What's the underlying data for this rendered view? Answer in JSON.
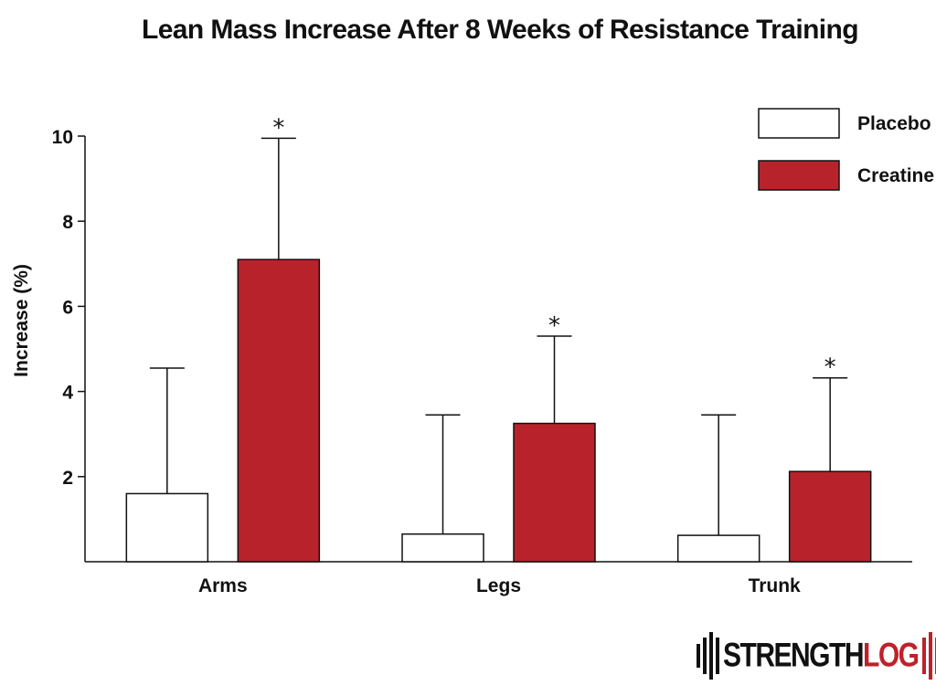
{
  "chart_data": {
    "type": "bar",
    "title": "Lean Mass Increase After 8 Weeks of Resistance Training",
    "xlabel": "",
    "ylabel": "Increase (%)",
    "ylim": [
      0,
      10
    ],
    "yticks": [
      2,
      4,
      6,
      8,
      10
    ],
    "categories": [
      "Arms",
      "Legs",
      "Trunk"
    ],
    "series": [
      {
        "name": "Placebo",
        "color": "#ffffff",
        "values": [
          1.6,
          0.65,
          0.62
        ],
        "error_upper": [
          4.55,
          3.45,
          3.45
        ],
        "significant": [
          false,
          false,
          false
        ]
      },
      {
        "name": "Creatine",
        "color": "#b8232b",
        "values": [
          7.1,
          3.25,
          2.12
        ],
        "error_upper": [
          9.95,
          5.3,
          4.32
        ],
        "significant": [
          true,
          true,
          true
        ]
      }
    ],
    "significance_marker": "*",
    "legend_position": "top-right",
    "grid": false
  },
  "logo": {
    "text_primary": "STRENGTH",
    "text_accent": "LOG",
    "accent_color": "#c0202a"
  }
}
